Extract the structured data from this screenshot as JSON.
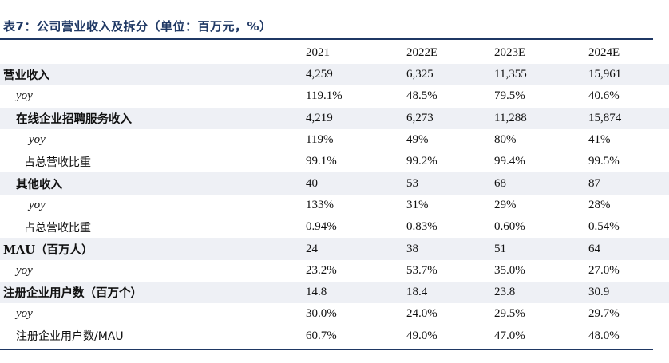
{
  "title": "表7：公司营业收入及拆分（单位：百万元，%）",
  "columns": [
    "",
    "2021",
    "2022E",
    "2023E",
    "2024E"
  ],
  "rows": [
    {
      "label": "营业收入",
      "values": [
        "4,259",
        "6,325",
        "11,355",
        "15,961"
      ]
    },
    {
      "label": "yoy",
      "values": [
        "119.1%",
        "48.5%",
        "79.5%",
        "40.6%"
      ]
    },
    {
      "label": "在线企业招聘服务收入",
      "values": [
        "4,219",
        "6,273",
        "11,288",
        "15,874"
      ]
    },
    {
      "label": "yoy",
      "values": [
        "119%",
        "49%",
        "80%",
        "41%"
      ]
    },
    {
      "label": "占总营收比重",
      "values": [
        "99.1%",
        "99.2%",
        "99.4%",
        "99.5%"
      ]
    },
    {
      "label": "其他收入",
      "values": [
        "40",
        "53",
        "68",
        "87"
      ]
    },
    {
      "label": "yoy",
      "values": [
        "133%",
        "31%",
        "29%",
        "28%"
      ]
    },
    {
      "label": "占总营收比重",
      "values": [
        "0.94%",
        "0.83%",
        "0.60%",
        "0.54%"
      ]
    },
    {
      "label": "MAU（百万人）",
      "values": [
        "24",
        "38",
        "51",
        "64"
      ]
    },
    {
      "label": "yoy",
      "values": [
        "23.2%",
        "53.7%",
        "35.0%",
        "27.0%"
      ]
    },
    {
      "label": "注册企业用户数（百万个）",
      "values": [
        "14.8",
        "18.4",
        "23.8",
        "30.9"
      ]
    },
    {
      "label": "yoy",
      "values": [
        "30.0%",
        "24.0%",
        "29.5%",
        "29.7%"
      ]
    },
    {
      "label": "注册企业用户数/MAU",
      "values": [
        "60.7%",
        "49.0%",
        "47.0%",
        "48.0%"
      ]
    }
  ]
}
